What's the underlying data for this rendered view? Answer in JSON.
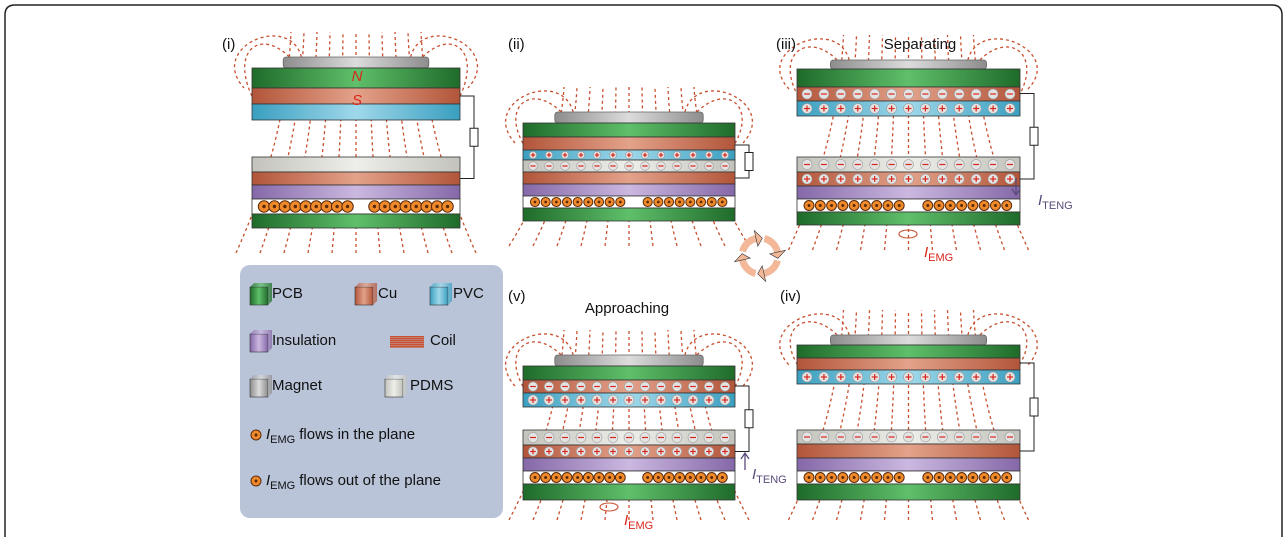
{
  "panels": [
    {
      "label": "(i)"
    },
    {
      "label": "(ii)"
    },
    {
      "label": "(iii)",
      "caption": "Separating"
    },
    {
      "label": "(iv)"
    },
    {
      "label": "(v)",
      "caption": "Approaching"
    }
  ],
  "poles": {
    "north": "N",
    "south": "S"
  },
  "currents": {
    "teng": {
      "symbol": "I",
      "subscript": "TENG"
    },
    "emg": {
      "symbol": "I",
      "subscript": "EMG"
    }
  },
  "legend": {
    "items": [
      "PCB",
      "Cu",
      "PVC",
      "Insulation",
      "Coil",
      "Magnet",
      "PDMS"
    ],
    "flows": [
      {
        "symbol": "I",
        "subscript": "EMG",
        "text": "flows in the plane"
      },
      {
        "symbol": "I",
        "subscript": "EMG",
        "text": "flows out of the plane"
      }
    ]
  }
}
